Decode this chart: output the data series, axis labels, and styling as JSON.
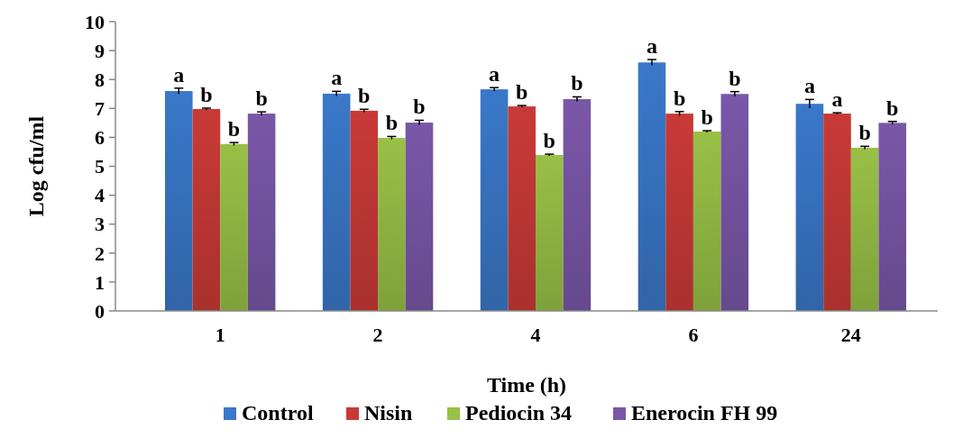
{
  "chart_data": {
    "type": "bar",
    "xlabel": "Time (h)",
    "ylabel": "Log cfu/ml",
    "categories": [
      "1",
      "2",
      "4",
      "6",
      "24"
    ],
    "ylim": [
      0,
      10
    ],
    "yticks": [
      0,
      1,
      2,
      3,
      4,
      5,
      6,
      7,
      8,
      9,
      10
    ],
    "legend": "bottom",
    "grid": false,
    "series": [
      {
        "name": "Control",
        "color": "#3a78c9",
        "values": [
          7.6,
          7.51,
          7.66,
          8.59,
          7.16
        ],
        "errors": [
          0.1,
          0.08,
          0.06,
          0.1,
          0.15
        ],
        "value_labels": [
          "a",
          "a",
          "a",
          "a",
          "a"
        ]
      },
      {
        "name": "Nisin",
        "color": "#c93a37",
        "values": [
          6.98,
          6.92,
          7.07,
          6.82,
          6.82
        ],
        "errors": [
          0.03,
          0.05,
          0.03,
          0.07,
          0.03
        ],
        "value_labels": [
          "b",
          "b",
          "b",
          "b",
          "a"
        ]
      },
      {
        "name": "Pediocin 34",
        "color": "#98c047",
        "values": [
          5.77,
          5.98,
          5.39,
          6.2,
          5.64
        ],
        "errors": [
          0.05,
          0.05,
          0.03,
          0.03,
          0.05
        ],
        "value_labels": [
          "b",
          "b",
          "b",
          "b",
          "b"
        ]
      },
      {
        "name": "Enerocin FH 99",
        "color": "#7a57a8",
        "values": [
          6.82,
          6.51,
          7.32,
          7.5,
          6.5
        ],
        "errors": [
          0.06,
          0.08,
          0.08,
          0.08,
          0.05
        ],
        "value_labels": [
          "b",
          "b",
          "b",
          "b",
          "b"
        ]
      }
    ]
  }
}
